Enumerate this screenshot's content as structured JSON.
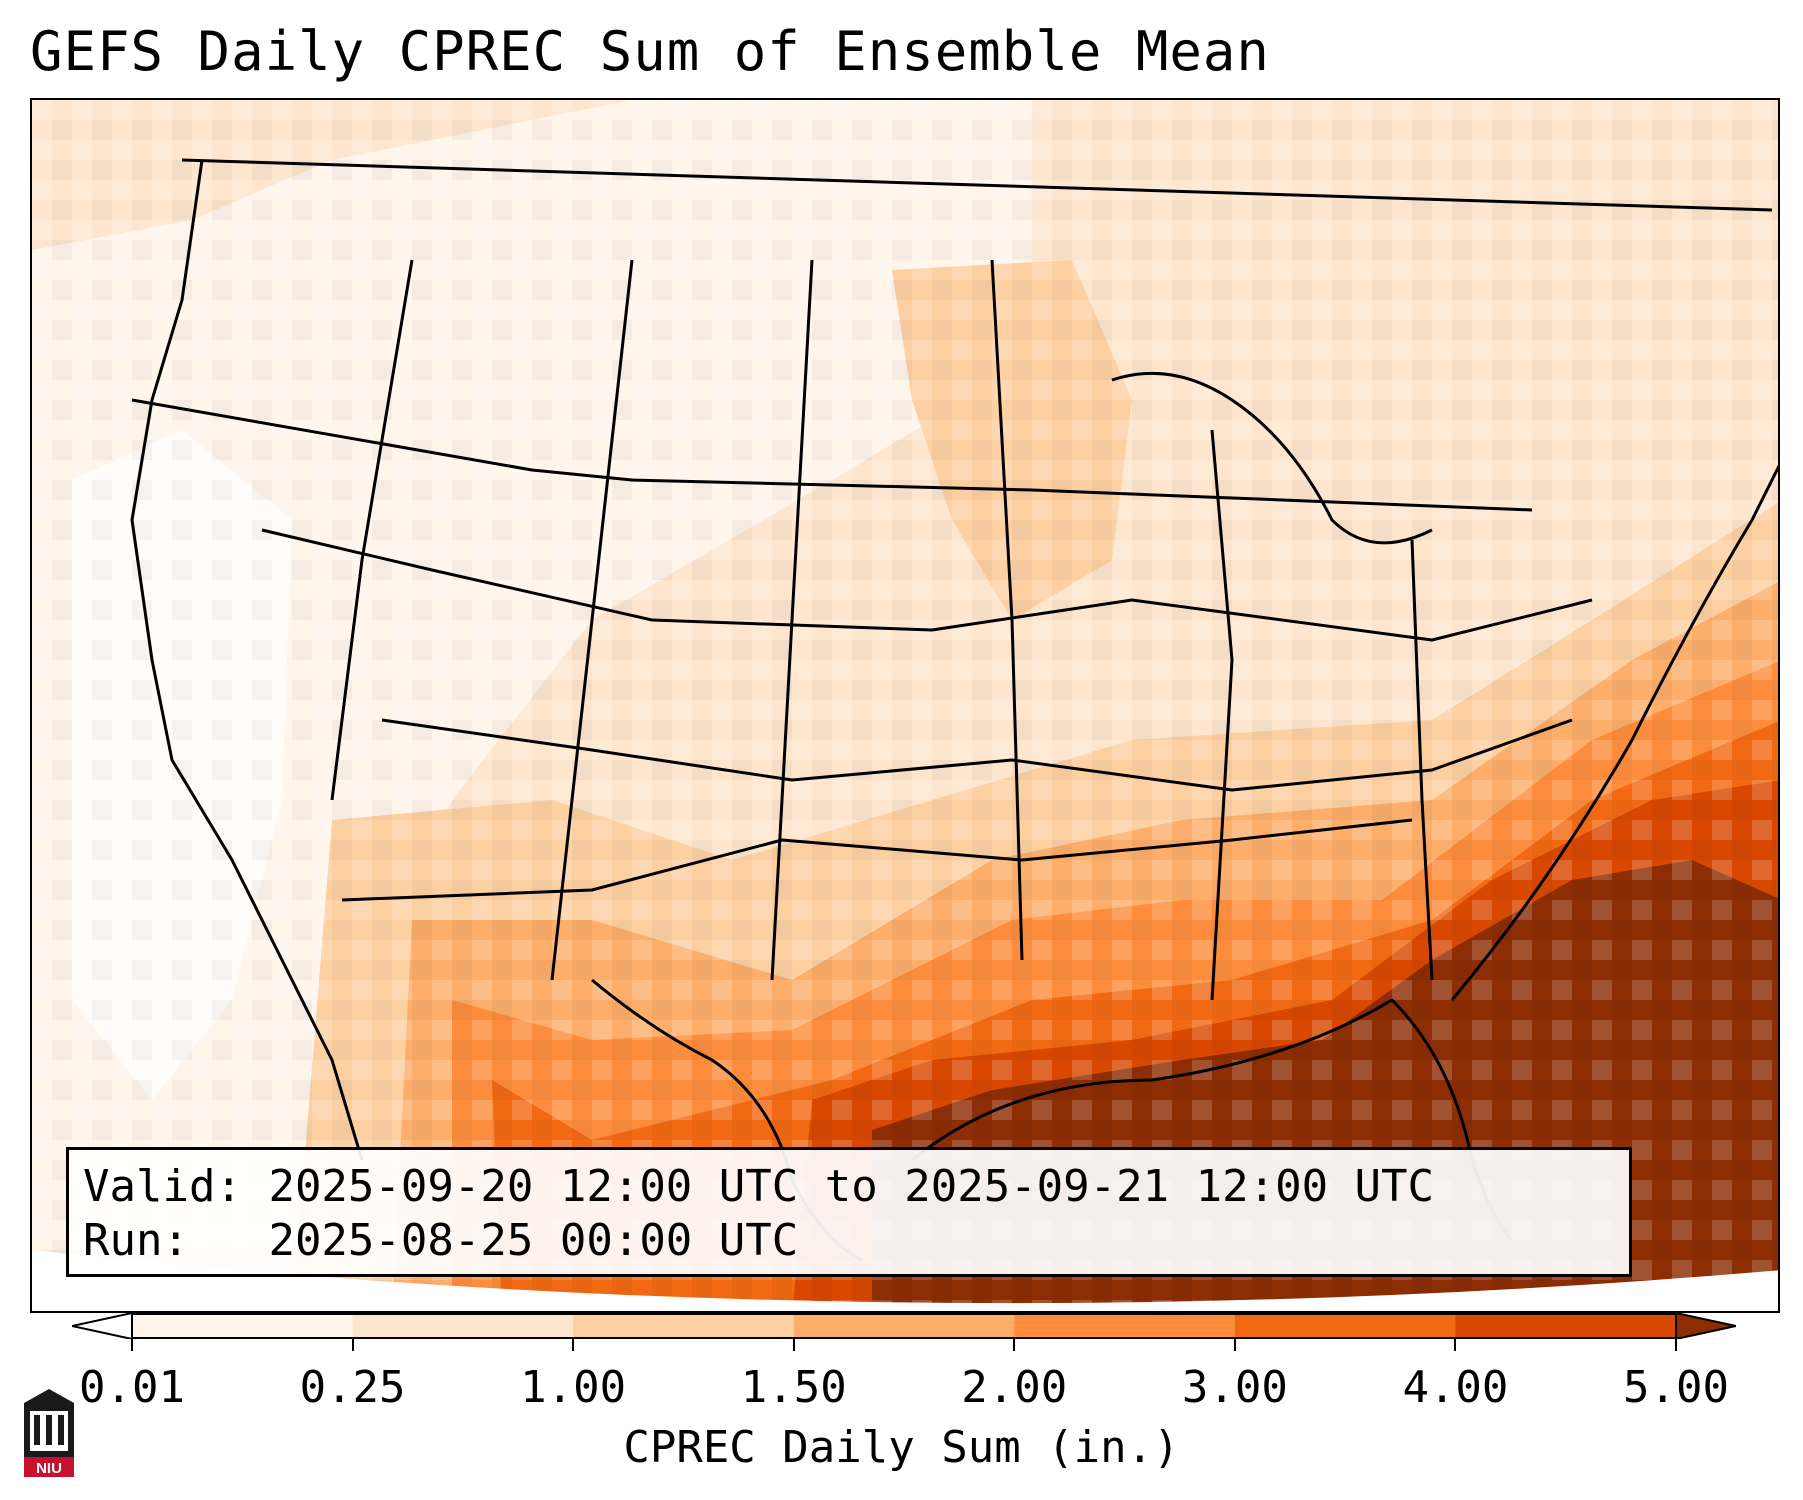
{
  "title": "GEFS Daily CPREC Sum of Ensemble Mean",
  "info": {
    "valid_label": "Valid:",
    "valid_value": "2025-09-20 12:00 UTC to 2025-09-21 12:00 UTC",
    "run_label": "Run:",
    "run_value": "2025-08-25 00:00 UTC"
  },
  "colorbar": {
    "label": "CPREC Daily Sum (in.)",
    "ticks": [
      "0.01",
      "0.25",
      "1.00",
      "1.50",
      "2.00",
      "3.00",
      "4.00",
      "5.00"
    ],
    "colors": [
      "#fff5eb",
      "#fee6ce",
      "#fdd0a2",
      "#fdae6b",
      "#fd8d3c",
      "#f16913",
      "#d94801",
      "#8c2d04"
    ],
    "extend": "both"
  },
  "logo": {
    "text": "NIU"
  }
}
